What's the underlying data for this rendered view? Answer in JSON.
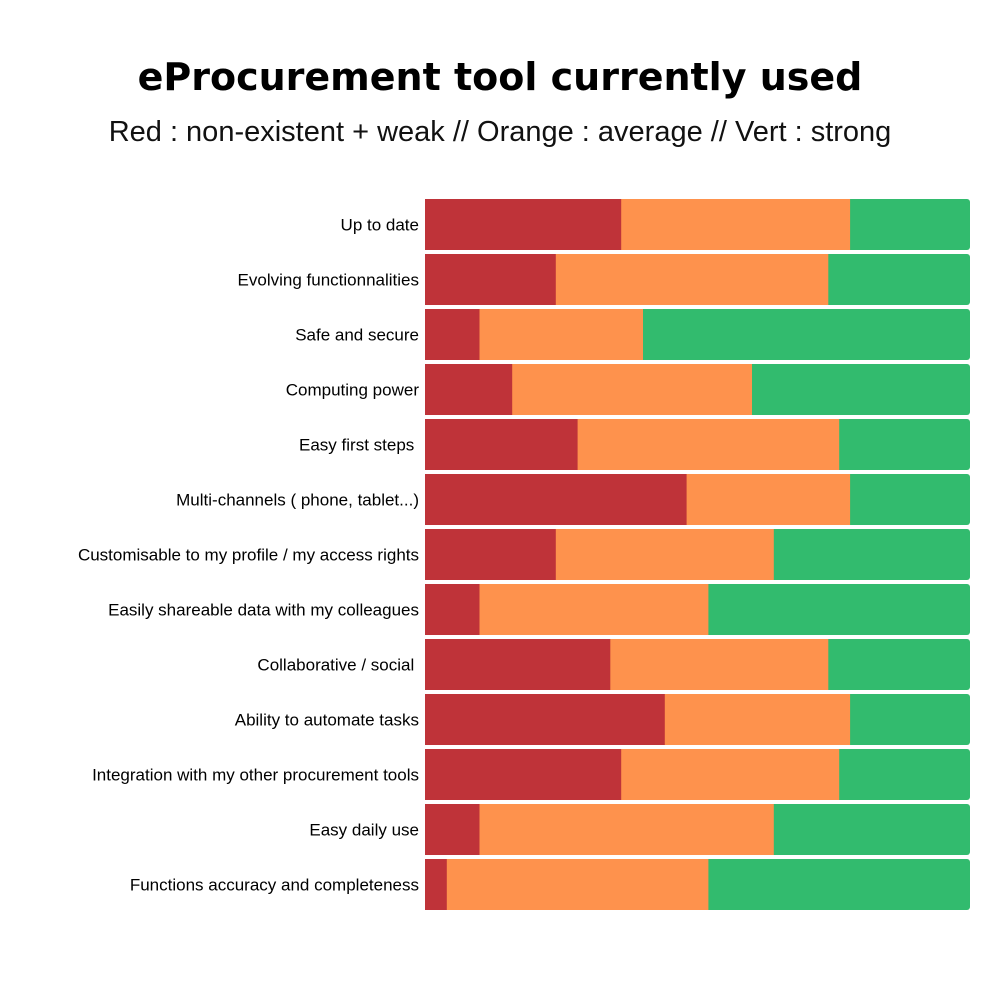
{
  "chart_data": {
    "type": "bar",
    "orientation": "horizontal",
    "stacked": true,
    "normalized_percent": true,
    "title": "eProcurement tool currently used",
    "subtitle": "Red : non-existent + weak // Orange : average // Vert : strong",
    "categories": [
      "Up to date",
      "Evolving functionnalities",
      "Safe and secure",
      "Computing power",
      "Easy first steps ",
      "Multi-channels ( phone, tablet...)",
      "Customisable to my profile / my access rights",
      "Easily shareable data with my colleagues",
      "Collaborative / social ",
      "Ability to automate tasks",
      "Integration with my other procurement tools",
      "Easy daily use",
      "Functions accuracy and completeness"
    ],
    "series": [
      {
        "color": "#bf3339",
        "values": [
          36,
          24,
          10,
          16,
          28,
          48,
          24,
          10,
          34,
          44,
          36,
          10,
          4
        ]
      },
      {
        "color": "#fe924d",
        "values": [
          42,
          50,
          30,
          44,
          48,
          30,
          40,
          42,
          40,
          34,
          40,
          54,
          48
        ]
      },
      {
        "color": "#32bb6e",
        "values": [
          22,
          26,
          60,
          40,
          24,
          22,
          36,
          48,
          26,
          22,
          24,
          36,
          48
        ]
      }
    ],
    "xlim": [
      0,
      100
    ],
    "grid": false,
    "legend": "none"
  }
}
